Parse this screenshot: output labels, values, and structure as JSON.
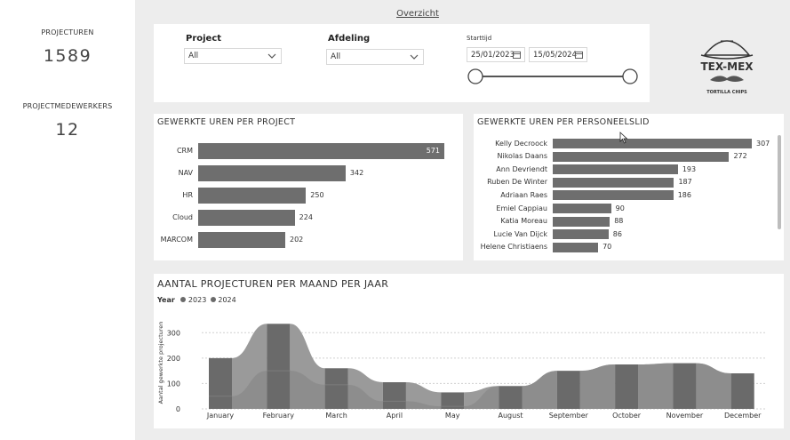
{
  "kpis": [
    {
      "label": "PROJECTUREN",
      "value": "1589"
    },
    {
      "label": "PROJECTMEDEWERKERS",
      "value": "12"
    }
  ],
  "nav": {
    "overview_link": "Overzicht"
  },
  "filters": {
    "project": {
      "label": "Project",
      "value": "All"
    },
    "afdeling": {
      "label": "Afdeling",
      "value": "All"
    },
    "starttijd": {
      "label": "Starttijd",
      "from": "25/01/2023",
      "to": "15/05/2024",
      "range_fraction": [
        0.0,
        1.0
      ]
    }
  },
  "logo": {
    "text_top": "TEX-MEX",
    "text_bottom": "TORTILLA CHIPS"
  },
  "colors": {
    "bar": "#6e6e6e",
    "area": "#8e8e8e",
    "dark": "#6a6a6a",
    "panel": "#ffffff",
    "bg": "#ededed"
  },
  "chart_data": [
    {
      "type": "bar",
      "orientation": "horizontal",
      "title": "GEWERKTE UREN PER PROJECT",
      "categories": [
        "CRM",
        "NAV",
        "HR",
        "Cloud",
        "MARCOM"
      ],
      "values": [
        571,
        342,
        250,
        224,
        202
      ],
      "xlim": [
        0,
        571
      ]
    },
    {
      "type": "bar",
      "orientation": "horizontal",
      "title": "GEWERKTE UREN PER PERSONEELSLID",
      "categories": [
        "Kelly Decroock",
        "Nikolas Daans",
        "Ann Devriendt",
        "Ruben De Winter",
        "Adriaan Raes",
        "Emiel Cappiau",
        "Katia Moreau",
        "Lucie Van Dijck",
        "Helene Christiaens"
      ],
      "values": [
        307,
        272,
        193,
        187,
        186,
        90,
        88,
        86,
        70
      ],
      "xlim": [
        0,
        307
      ]
    },
    {
      "type": "bar",
      "title": "AANTAL PROJECTUREN PER MAAND PER JAAR",
      "legend_title": "Year",
      "ylabel": "Aantal gewerkte projecturen",
      "ylim": [
        0,
        350
      ],
      "yticks": [
        0,
        100,
        200,
        300
      ],
      "categories": [
        "January",
        "February",
        "March",
        "April",
        "May",
        "August",
        "September",
        "October",
        "November",
        "December"
      ],
      "series": [
        {
          "name": "2023",
          "values": [
            50,
            150,
            95,
            30,
            10,
            90,
            150,
            175,
            180,
            140
          ]
        },
        {
          "name": "2024",
          "values": [
            150,
            185,
            65,
            75,
            55,
            0,
            0,
            0,
            0,
            0
          ]
        }
      ],
      "totals": [
        200,
        335,
        160,
        105,
        65,
        90,
        150,
        175,
        180,
        140
      ]
    }
  ]
}
